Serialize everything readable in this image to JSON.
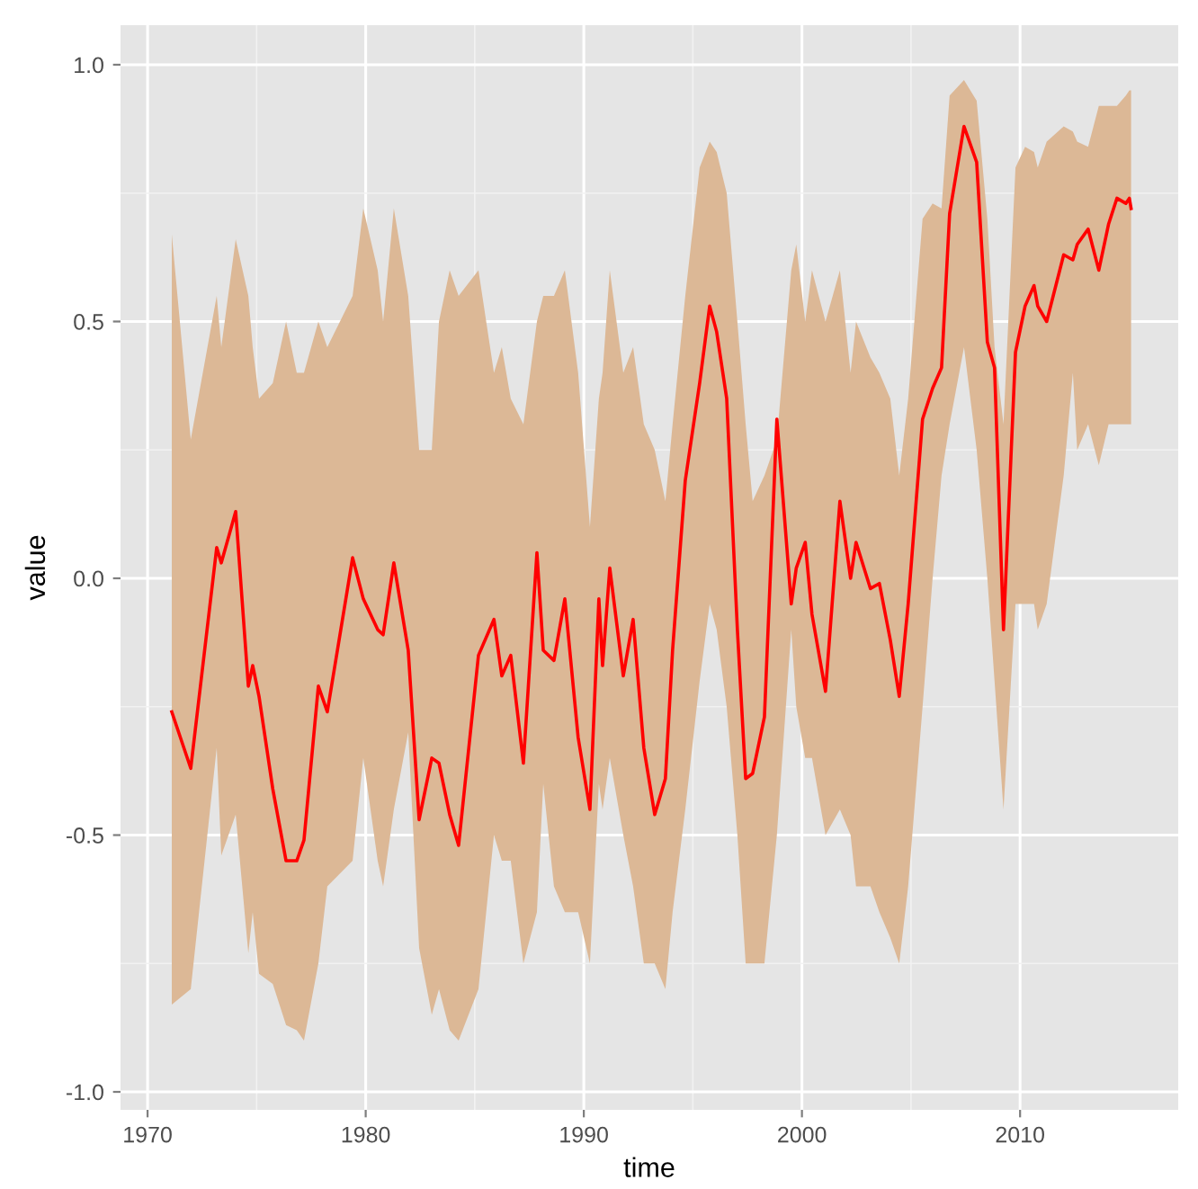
{
  "chart_data": {
    "type": "line",
    "xlabel": "time",
    "ylabel": "value",
    "x": [
      1971.11,
      1971.98,
      1973.17,
      1973.38,
      1974.04,
      1974.62,
      1974.82,
      1975.11,
      1975.74,
      1976.35,
      1976.84,
      1977.17,
      1977.83,
      1978.24,
      1979.4,
      1979.89,
      1980.55,
      1980.8,
      1981.29,
      1981.95,
      1982.45,
      1983.03,
      1983.36,
      1983.85,
      1984.26,
      1985.17,
      1985.88,
      1986.24,
      1986.65,
      1987.23,
      1987.85,
      1988.14,
      1988.63,
      1989.13,
      1989.74,
      1990.28,
      1990.69,
      1990.86,
      1991.19,
      1991.81,
      1992.26,
      1992.75,
      1993.25,
      1993.74,
      1994.07,
      1994.65,
      1995.31,
      1995.77,
      1996.09,
      1996.55,
      1997.04,
      1997.42,
      1997.74,
      1998.28,
      1998.85,
      1999.51,
      1999.74,
      2000.15,
      2000.46,
      2001.08,
      2001.74,
      2002.23,
      2002.48,
      2003.14,
      2003.55,
      2004.05,
      2004.46,
      2004.87,
      2005.53,
      2005.99,
      2006.4,
      2006.77,
      2007.43,
      2008.01,
      2008.5,
      2008.83,
      2009.24,
      2009.79,
      2010.23,
      2010.64,
      2010.81,
      2011.22,
      2012.0,
      2012.42,
      2012.62,
      2013.12,
      2013.61,
      2014.06,
      2014.44,
      2014.85,
      2015.01,
      2015.09
    ],
    "series": [
      {
        "color": "#ff0000",
        "lower": [
          -0.83,
          -0.8,
          -0.33,
          -0.54,
          -0.46,
          -0.73,
          -0.65,
          -0.77,
          -0.79,
          -0.87,
          -0.88,
          -0.9,
          -0.75,
          -0.6,
          -0.55,
          -0.35,
          -0.55,
          -0.6,
          -0.45,
          -0.3,
          -0.72,
          -0.85,
          -0.8,
          -0.88,
          -0.9,
          -0.8,
          -0.5,
          -0.55,
          -0.55,
          -0.75,
          -0.65,
          -0.4,
          -0.6,
          -0.65,
          -0.65,
          -0.75,
          -0.4,
          -0.45,
          -0.35,
          -0.5,
          -0.6,
          -0.75,
          -0.75,
          -0.8,
          -0.65,
          -0.45,
          -0.2,
          -0.05,
          -0.1,
          -0.25,
          -0.5,
          -0.75,
          -0.75,
          -0.75,
          -0.5,
          -0.1,
          -0.25,
          -0.35,
          -0.35,
          -0.5,
          -0.45,
          -0.5,
          -0.6,
          -0.6,
          -0.65,
          -0.7,
          -0.75,
          -0.6,
          -0.25,
          0.0,
          0.2,
          0.3,
          0.45,
          0.25,
          0.0,
          -0.2,
          -0.45,
          -0.05,
          -0.05,
          -0.05,
          -0.1,
          -0.05,
          0.2,
          0.4,
          0.25,
          0.3,
          0.22,
          0.3,
          0.3,
          0.3,
          0.3,
          0.3
        ],
        "upper": [
          0.67,
          0.27,
          0.55,
          0.45,
          0.66,
          0.55,
          0.45,
          0.35,
          0.38,
          0.5,
          0.4,
          0.4,
          0.5,
          0.45,
          0.55,
          0.72,
          0.6,
          0.5,
          0.72,
          0.55,
          0.25,
          0.25,
          0.5,
          0.6,
          0.55,
          0.6,
          0.4,
          0.45,
          0.35,
          0.3,
          0.5,
          0.55,
          0.55,
          0.6,
          0.4,
          0.1,
          0.35,
          0.4,
          0.6,
          0.4,
          0.45,
          0.3,
          0.25,
          0.15,
          0.3,
          0.55,
          0.8,
          0.85,
          0.83,
          0.75,
          0.5,
          0.3,
          0.15,
          0.2,
          0.27,
          0.6,
          0.65,
          0.5,
          0.6,
          0.5,
          0.6,
          0.4,
          0.5,
          0.43,
          0.4,
          0.35,
          0.2,
          0.35,
          0.7,
          0.73,
          0.72,
          0.94,
          0.97,
          0.93,
          0.7,
          0.45,
          0.3,
          0.8,
          0.84,
          0.83,
          0.8,
          0.85,
          0.88,
          0.87,
          0.85,
          0.84,
          0.92,
          0.92,
          0.92,
          0.94,
          0.95,
          0.95
        ],
        "values": [
          -0.26,
          -0.37,
          0.06,
          0.03,
          0.13,
          -0.21,
          -0.17,
          -0.23,
          -0.41,
          -0.55,
          -0.55,
          -0.51,
          -0.21,
          -0.26,
          0.04,
          -0.04,
          -0.1,
          -0.11,
          0.03,
          -0.14,
          -0.47,
          -0.35,
          -0.36,
          -0.46,
          -0.52,
          -0.15,
          -0.08,
          -0.19,
          -0.15,
          -0.36,
          0.05,
          -0.14,
          -0.16,
          -0.04,
          -0.31,
          -0.45,
          -0.04,
          -0.17,
          0.02,
          -0.19,
          -0.08,
          -0.33,
          -0.46,
          -0.39,
          -0.14,
          0.19,
          0.38,
          0.53,
          0.48,
          0.35,
          -0.1,
          -0.39,
          -0.38,
          -0.27,
          0.31,
          -0.05,
          0.02,
          0.07,
          -0.07,
          -0.22,
          0.15,
          0.0,
          0.07,
          -0.02,
          -0.01,
          -0.12,
          -0.23,
          -0.05,
          0.31,
          0.37,
          0.41,
          0.71,
          0.88,
          0.81,
          0.46,
          0.41,
          -0.1,
          0.44,
          0.53,
          0.57,
          0.53,
          0.5,
          0.63,
          0.62,
          0.65,
          0.68,
          0.6,
          0.69,
          0.74,
          0.73,
          0.74,
          0.72
        ]
      }
    ],
    "xlim": [
      1968.76,
      2017.25
    ],
    "ylim": [
      -1.035,
      1.077
    ],
    "xticks": [
      1970,
      1980,
      1990,
      2000,
      2010
    ],
    "yticks": [
      {
        "value": -1.0,
        "label": "-1.0"
      },
      {
        "value": -0.5,
        "label": "-0.5"
      },
      {
        "value": 0.0,
        "label": "0.0"
      },
      {
        "value": 0.5,
        "label": "0.5"
      },
      {
        "value": 1.0,
        "label": "1.0"
      }
    ],
    "grid": true,
    "line_style": "solid",
    "marker": "none"
  }
}
